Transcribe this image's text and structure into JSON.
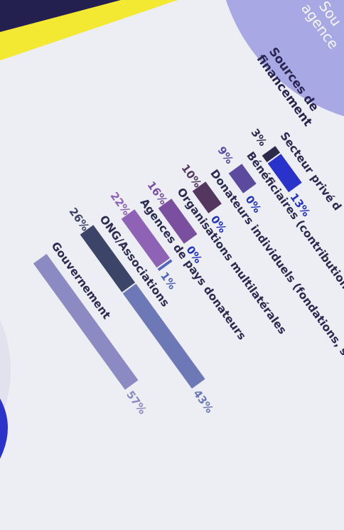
{
  "chart_data": {
    "type": "bar",
    "heading": "Sources de financement",
    "series": [
      {
        "name": "",
        "color": "#2b2a48"
      },
      {
        "name": "",
        "color": "#2a33c9"
      }
    ],
    "categories": [
      {
        "label": "Secteur privé",
        "values": [
          3,
          13
        ]
      },
      {
        "label": "Bénéficiaires (contributions des membres)",
        "values": [
          9,
          0
        ]
      },
      {
        "label": "Donateurs individuels (fondations, sociétés)",
        "values": [
          10,
          0
        ]
      },
      {
        "label": "Organisations multilatérales",
        "values": [
          16,
          0
        ]
      },
      {
        "label": "Agences de pays donateurs",
        "values": [
          22,
          1
        ]
      },
      {
        "label": "ONG/Associations",
        "values": [
          26,
          43
        ]
      },
      {
        "label": "Gouvernement",
        "values": [
          null,
          57
        ]
      }
    ],
    "bar_colors": [
      [
        "#2b2a48",
        "#2a33c9"
      ],
      [
        "#5b4a9e",
        "#2a33c9"
      ],
      [
        "#54375f",
        "#2a33c9"
      ],
      [
        "#7b4fa0",
        "#2a33c9"
      ],
      [
        "#8e62b4",
        "#5266c0"
      ],
      [
        "#3c4468",
        "#6c79b6"
      ],
      [
        "#5560a8",
        "#8b8ac2"
      ]
    ],
    "value_colors": [
      [
        "#2b2a48",
        "#2233c0"
      ],
      [
        "#5b4a9e",
        "#2233c0"
      ],
      [
        "#54375f",
        "#2233c0"
      ],
      [
        "#7b4fa0",
        "#2233c0"
      ],
      [
        "#8e62b4",
        "#4f63bc"
      ],
      [
        "#3c4468",
        "#6c79b6"
      ],
      [
        "#5560a8",
        "#8b8ac2"
      ]
    ],
    "partial_text": [
      "Sou",
      "agence",
      "d"
    ]
  }
}
